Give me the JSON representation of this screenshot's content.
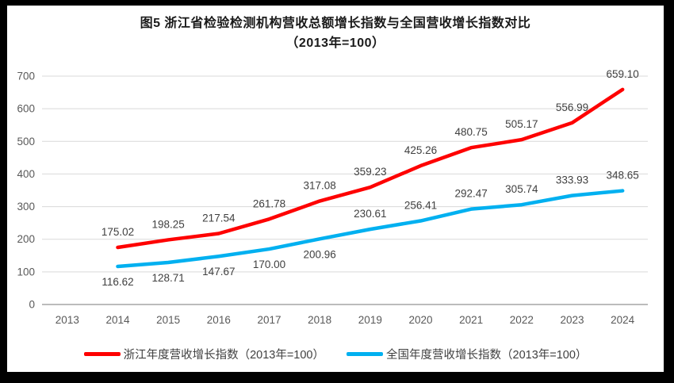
{
  "title": {
    "line1": "图5  浙江省检验检测机构营收总额增长指数与全国营收增长指数对比",
    "line2": "（2013年=100）"
  },
  "chart_data": {
    "type": "line",
    "title": "图5 浙江省检验检测机构营收总额增长指数与全国营收增长指数对比（2013年=100）",
    "xlabel": "",
    "ylabel": "",
    "ylim": [
      0,
      700
    ],
    "ytick_step": 100,
    "yticks": [
      0,
      100,
      200,
      300,
      400,
      500,
      600,
      700
    ],
    "grid": "horizontal",
    "legend_position": "bottom",
    "categories": [
      "2013",
      "2014",
      "2015",
      "2016",
      "2017",
      "2018",
      "2019",
      "2020",
      "2021",
      "2022",
      "2023",
      "2024"
    ],
    "series": [
      {
        "key": "zhejiang",
        "name": "浙江年度营收增长指数（2013年=100）",
        "color": "#fe0000",
        "start_index": 1,
        "values": [
          175.02,
          198.25,
          217.54,
          261.78,
          317.08,
          359.23,
          425.26,
          480.75,
          505.17,
          556.99,
          659.1
        ],
        "label_sides": [
          "above",
          "above",
          "above",
          "above",
          "above",
          "above",
          "above",
          "above",
          "above",
          "above",
          "above"
        ]
      },
      {
        "key": "national",
        "name": "全国年度营收增长指数（2013年=100）",
        "color": "#00b0f0",
        "start_index": 1,
        "values": [
          116.62,
          128.71,
          147.67,
          170.0,
          200.96,
          230.61,
          256.41,
          292.47,
          305.74,
          333.93,
          348.65
        ],
        "label_sides": [
          "below",
          "below",
          "below",
          "below",
          "below",
          "above",
          "above",
          "above",
          "above",
          "above",
          "above"
        ]
      }
    ]
  },
  "colors": {
    "gridline": "#d9d9d9",
    "axis_line": "#a6a6a6",
    "tick_label": "#595959",
    "data_label": "#404040",
    "frame": "#000000"
  }
}
